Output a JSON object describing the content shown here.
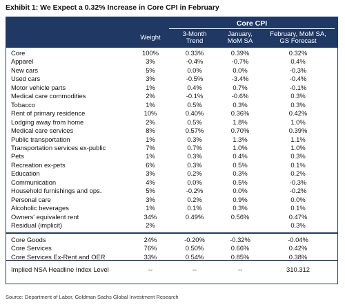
{
  "title": "Exhibit 1: We Expect a 0.32% Increase in Core CPI in February",
  "header": {
    "group": "Core CPI",
    "weight": "Weight",
    "trend": [
      "3-Month",
      "Trend"
    ],
    "jan": [
      "January,",
      "MoM SA"
    ],
    "feb": [
      "February, MoM SA,",
      "GS Forecast"
    ]
  },
  "rows": [
    {
      "label": "Core",
      "weight": "100%",
      "trend": "0.33%",
      "jan": "0.39%",
      "feb": "0.32%"
    },
    {
      "label": "Apparel",
      "weight": "3%",
      "trend": "-0.4%",
      "jan": "-0.7%",
      "feb": "0.4%"
    },
    {
      "label": "New cars",
      "weight": "5%",
      "trend": "0.0%",
      "jan": "0.0%",
      "feb": "-0.3%"
    },
    {
      "label": "Used cars",
      "weight": "3%",
      "trend": "-0.5%",
      "jan": "-3.4%",
      "feb": "-0.4%"
    },
    {
      "label": "Motor vehicle parts",
      "weight": "1%",
      "trend": "0.4%",
      "jan": "0.7%",
      "feb": "-0.1%"
    },
    {
      "label": "Medical care commodities",
      "weight": "2%",
      "trend": "-0.1%",
      "jan": "-0.6%",
      "feb": "0.3%"
    },
    {
      "label": "Tobacco",
      "weight": "1%",
      "trend": "0.5%",
      "jan": "0.3%",
      "feb": "0.3%"
    },
    {
      "label": "Rent of primary residence",
      "weight": "10%",
      "trend": "0.40%",
      "jan": "0.36%",
      "feb": "0.42%"
    },
    {
      "label": "Lodging away from home",
      "weight": "2%",
      "trend": "0.5%",
      "jan": "1.8%",
      "feb": "1.0%"
    },
    {
      "label": "Medical care services",
      "weight": "8%",
      "trend": "0.57%",
      "jan": "0.70%",
      "feb": "0.39%"
    },
    {
      "label": "Public transportation",
      "weight": "1%",
      "trend": "0.3%",
      "jan": "1.3%",
      "feb": "1.1%"
    },
    {
      "label": "Transportation services ex-public",
      "weight": "7%",
      "trend": "0.7%",
      "jan": "1.0%",
      "feb": "1.0%"
    },
    {
      "label": "Pets",
      "weight": "1%",
      "trend": "0.3%",
      "jan": "0.4%",
      "feb": "0.3%"
    },
    {
      "label": "Recreation ex-pets",
      "weight": "6%",
      "trend": "0.3%",
      "jan": "0.5%",
      "feb": "0.1%"
    },
    {
      "label": "Education",
      "weight": "3%",
      "trend": "0.2%",
      "jan": "0.3%",
      "feb": "0.2%"
    },
    {
      "label": "Communication",
      "weight": "4%",
      "trend": "0.0%",
      "jan": "0.5%",
      "feb": "-0.3%"
    },
    {
      "label": "Household furnishings and ops.",
      "weight": "5%",
      "trend": "-0.2%",
      "jan": "0.0%",
      "feb": "-0.2%"
    },
    {
      "label": "Personal care",
      "weight": "3%",
      "trend": "0.2%",
      "jan": "0.9%",
      "feb": "0.0%"
    },
    {
      "label": "Alcoholic beverages",
      "weight": "1%",
      "trend": "0.1%",
      "jan": "0.3%",
      "feb": "0.1%"
    },
    {
      "label": "Owners' equivalent rent",
      "weight": "34%",
      "trend": "0.49%",
      "jan": "0.56%",
      "feb": "0.47%"
    },
    {
      "label": "Residual (implicit)",
      "weight": "2%",
      "trend": "",
      "jan": "",
      "feb": "0.3%"
    }
  ],
  "summary": [
    {
      "label": "Core Goods",
      "weight": "24%",
      "trend": "-0.20%",
      "jan": "-0.32%",
      "feb": "-0.04%"
    },
    {
      "label": "Core Services",
      "weight": "76%",
      "trend": "0.50%",
      "jan": "0.66%",
      "feb": "0.42%"
    },
    {
      "label": "Core Services Ex-Rent and OER",
      "weight": "33%",
      "trend": "0.54%",
      "jan": "0.85%",
      "feb": "0.38%"
    }
  ],
  "nsa": {
    "label": "Implied NSA Headline Index Level",
    "weight": "--",
    "trend": "--",
    "jan": "--",
    "feb": "310.312"
  },
  "source": "Source: Department of Labor, Goldman Sachs Global Investment Research"
}
